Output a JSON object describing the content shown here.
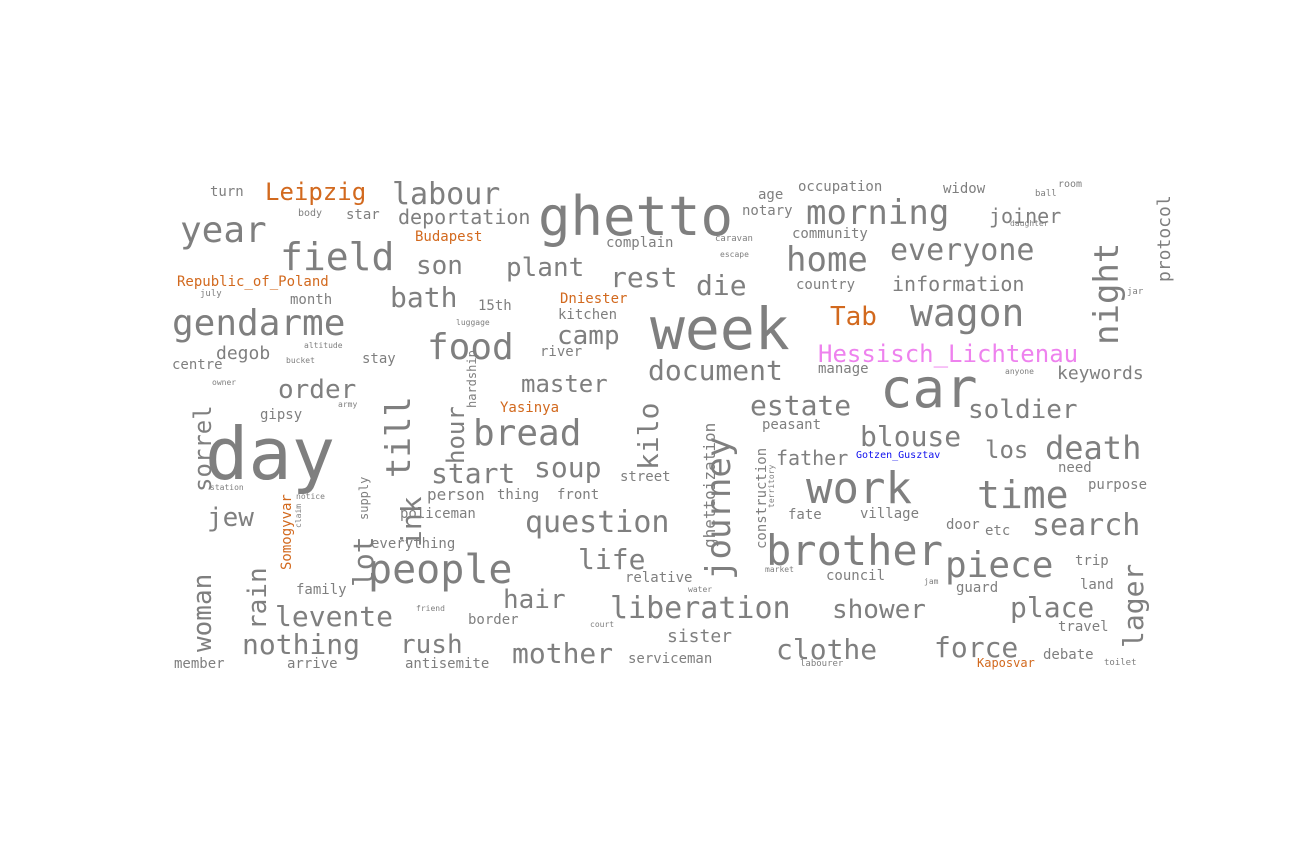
{
  "colors": {
    "gray": "#7f7f7f",
    "orange": "#d2691e",
    "magenta": "#ee82ee",
    "blue": "#1010ee"
  },
  "words": [
    {
      "text": "day",
      "c": "gray"
    },
    {
      "text": "week",
      "c": "gray"
    },
    {
      "text": "ghetto",
      "c": "gray"
    },
    {
      "text": "car",
      "c": "gray"
    },
    {
      "text": "work",
      "c": "gray"
    },
    {
      "text": "brother",
      "c": "gray"
    },
    {
      "text": "people",
      "c": "gray"
    },
    {
      "text": "time",
      "c": "gray"
    },
    {
      "text": "journey",
      "c": "gray"
    },
    {
      "text": "wagon",
      "c": "gray"
    },
    {
      "text": "morning",
      "c": "gray"
    },
    {
      "text": "night",
      "c": "gray"
    },
    {
      "text": "field",
      "c": "gray"
    },
    {
      "text": "gendarme",
      "c": "gray"
    },
    {
      "text": "bread",
      "c": "gray"
    },
    {
      "text": "home",
      "c": "gray"
    },
    {
      "text": "year",
      "c": "gray"
    },
    {
      "text": "food",
      "c": "gray"
    },
    {
      "text": "till",
      "c": "gray"
    },
    {
      "text": "piece",
      "c": "gray"
    },
    {
      "text": "death",
      "c": "gray"
    },
    {
      "text": "search",
      "c": "gray"
    },
    {
      "text": "liberation",
      "c": "gray"
    },
    {
      "text": "question",
      "c": "gray"
    },
    {
      "text": "everyone",
      "c": "gray"
    },
    {
      "text": "labour",
      "c": "gray"
    },
    {
      "text": "Leipzig",
      "c": "orange"
    },
    {
      "text": "Hessisch_Lichtenau",
      "c": "magenta"
    },
    {
      "text": "Tab",
      "c": "orange"
    },
    {
      "text": "document",
      "c": "gray"
    },
    {
      "text": "estate",
      "c": "gray"
    },
    {
      "text": "blouse",
      "c": "gray"
    },
    {
      "text": "soldier",
      "c": "gray"
    },
    {
      "text": "kilo",
      "c": "gray"
    },
    {
      "text": "start",
      "c": "gray"
    },
    {
      "text": "soup",
      "c": "gray"
    },
    {
      "text": "life",
      "c": "gray"
    },
    {
      "text": "levente",
      "c": "gray"
    },
    {
      "text": "nothing",
      "c": "gray"
    },
    {
      "text": "rush",
      "c": "gray"
    },
    {
      "text": "mother",
      "c": "gray"
    },
    {
      "text": "clothe",
      "c": "gray"
    },
    {
      "text": "force",
      "c": "gray"
    },
    {
      "text": "place",
      "c": "gray"
    },
    {
      "text": "shower",
      "c": "gray"
    },
    {
      "text": "hair",
      "c": "gray"
    },
    {
      "text": "lager",
      "c": "gray"
    },
    {
      "text": "rest",
      "c": "gray"
    },
    {
      "text": "die",
      "c": "gray"
    },
    {
      "text": "son",
      "c": "gray"
    },
    {
      "text": "plant",
      "c": "gray"
    },
    {
      "text": "bath",
      "c": "gray"
    },
    {
      "text": "camp",
      "c": "gray"
    },
    {
      "text": "master",
      "c": "gray"
    },
    {
      "text": "order",
      "c": "gray"
    },
    {
      "text": "lot",
      "c": "gray"
    },
    {
      "text": "ink",
      "c": "gray"
    },
    {
      "text": "hour",
      "c": "gray"
    },
    {
      "text": "jew",
      "c": "gray"
    },
    {
      "text": "rain",
      "c": "gray"
    },
    {
      "text": "woman",
      "c": "gray"
    },
    {
      "text": "sorrel",
      "c": "gray"
    },
    {
      "text": "los",
      "c": "gray"
    },
    {
      "text": "father",
      "c": "gray"
    },
    {
      "text": "joiner",
      "c": "gray"
    },
    {
      "text": "information",
      "c": "gray"
    },
    {
      "text": "protocol",
      "c": "gray"
    },
    {
      "text": "keywords",
      "c": "gray"
    },
    {
      "text": "deportation",
      "c": "gray"
    },
    {
      "text": "sister",
      "c": "gray"
    },
    {
      "text": "ghettoization",
      "c": "gray"
    },
    {
      "text": "construction",
      "c": "gray"
    },
    {
      "text": "degob",
      "c": "gray"
    },
    {
      "text": "person",
      "c": "gray"
    },
    {
      "text": "thing",
      "c": "gray"
    },
    {
      "text": "front",
      "c": "gray"
    },
    {
      "text": "policeman",
      "c": "gray"
    },
    {
      "text": "everything",
      "c": "gray"
    },
    {
      "text": "border",
      "c": "gray"
    },
    {
      "text": "antisemite",
      "c": "gray"
    },
    {
      "text": "serviceman",
      "c": "gray"
    },
    {
      "text": "arrive",
      "c": "gray"
    },
    {
      "text": "member",
      "c": "gray"
    },
    {
      "text": "family",
      "c": "gray"
    },
    {
      "text": "relative",
      "c": "gray"
    },
    {
      "text": "council",
      "c": "gray"
    },
    {
      "text": "guard",
      "c": "gray"
    },
    {
      "text": "village",
      "c": "gray"
    },
    {
      "text": "fate",
      "c": "gray"
    },
    {
      "text": "door",
      "c": "gray"
    },
    {
      "text": "etc",
      "c": "gray"
    },
    {
      "text": "trip",
      "c": "gray"
    },
    {
      "text": "land",
      "c": "gray"
    },
    {
      "text": "travel",
      "c": "gray"
    },
    {
      "text": "debate",
      "c": "gray"
    },
    {
      "text": "purpose",
      "c": "gray"
    },
    {
      "text": "need",
      "c": "gray"
    },
    {
      "text": "street",
      "c": "gray"
    },
    {
      "text": "peasant",
      "c": "gray"
    },
    {
      "text": "manage",
      "c": "gray"
    },
    {
      "text": "country",
      "c": "gray"
    },
    {
      "text": "community",
      "c": "gray"
    },
    {
      "text": "occupation",
      "c": "gray"
    },
    {
      "text": "widow",
      "c": "gray"
    },
    {
      "text": "notary",
      "c": "gray"
    },
    {
      "text": "age",
      "c": "gray"
    },
    {
      "text": "complain",
      "c": "gray"
    },
    {
      "text": "kitchen",
      "c": "gray"
    },
    {
      "text": "river",
      "c": "gray"
    },
    {
      "text": "stay",
      "c": "gray"
    },
    {
      "text": "centre",
      "c": "gray"
    },
    {
      "text": "gipsy",
      "c": "gray"
    },
    {
      "text": "month",
      "c": "gray"
    },
    {
      "text": "15th",
      "c": "gray"
    },
    {
      "text": "hardship",
      "c": "gray"
    },
    {
      "text": "supply",
      "c": "gray"
    },
    {
      "text": "turn",
      "c": "gray"
    },
    {
      "text": "star",
      "c": "gray"
    },
    {
      "text": "body",
      "c": "gray"
    },
    {
      "text": "Budapest",
      "c": "orange"
    },
    {
      "text": "Republic_of_Poland",
      "c": "orange"
    },
    {
      "text": "Dniester",
      "c": "orange"
    },
    {
      "text": "Yasinya",
      "c": "orange"
    },
    {
      "text": "Somogyvar",
      "c": "orange"
    },
    {
      "text": "Kaposvar",
      "c": "orange"
    },
    {
      "text": "Gotzen_Gusztav",
      "c": "blue"
    },
    {
      "text": "room",
      "c": "gray"
    },
    {
      "text": "ball",
      "c": "gray"
    },
    {
      "text": "daughter",
      "c": "gray"
    },
    {
      "text": "caravan",
      "c": "gray"
    },
    {
      "text": "escape",
      "c": "gray"
    },
    {
      "text": "jar",
      "c": "gray"
    },
    {
      "text": "luggage",
      "c": "gray"
    },
    {
      "text": "bucket",
      "c": "gray"
    },
    {
      "text": "owner",
      "c": "gray"
    },
    {
      "text": "notice",
      "c": "gray"
    },
    {
      "text": "station",
      "c": "gray"
    },
    {
      "text": "water",
      "c": "gray"
    },
    {
      "text": "court",
      "c": "gray"
    },
    {
      "text": "friend",
      "c": "gray"
    },
    {
      "text": "market",
      "c": "gray"
    },
    {
      "text": "labourer",
      "c": "gray"
    },
    {
      "text": "toilet",
      "c": "gray"
    },
    {
      "text": "jam",
      "c": "gray"
    },
    {
      "text": "anyone",
      "c": "gray"
    },
    {
      "text": "army",
      "c": "gray"
    },
    {
      "text": "altitude",
      "c": "gray"
    },
    {
      "text": "claim",
      "c": "gray"
    },
    {
      "text": "territory",
      "c": "gray"
    },
    {
      "text": "july",
      "c": "gray"
    }
  ]
}
